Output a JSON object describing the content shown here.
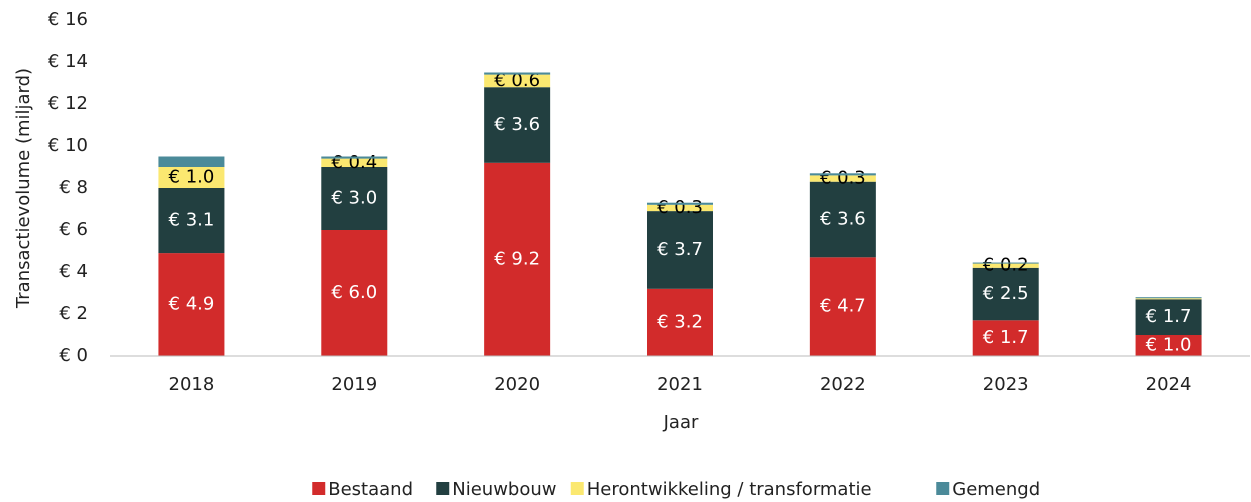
{
  "chart_data": {
    "type": "stacked-bar",
    "y_label": "Transactievolume (miljard)",
    "x_label": "Jaar",
    "categories": [
      "2018",
      "2019",
      "2020",
      "2021",
      "2022",
      "2023",
      "2024"
    ],
    "series": [
      {
        "name": "Bestaand",
        "color": "#d22b2b",
        "values": [
          4.9,
          6.0,
          9.2,
          3.2,
          4.7,
          1.7,
          1.0
        ],
        "value_labels": [
          "€ 4.9",
          "€ 6.0",
          "€ 9.2",
          "€ 3.2",
          "€ 4.7",
          "€ 1.7",
          "€ 1.0"
        ],
        "label_color": "#ffffff"
      },
      {
        "name": "Nieuwbouw",
        "color": "#223f40",
        "values": [
          3.1,
          3.0,
          3.6,
          3.7,
          3.6,
          2.5,
          1.7
        ],
        "value_labels": [
          "€ 3.1",
          "€ 3.0",
          "€ 3.6",
          "€ 3.7",
          "€ 3.6",
          "€ 2.5",
          "€ 1.7"
        ],
        "label_color": "#ffffff"
      },
      {
        "name": "Herontwikkeling / transformatie",
        "color": "#fbe870",
        "values": [
          1.0,
          0.4,
          0.6,
          0.3,
          0.3,
          0.2,
          0.05
        ],
        "value_labels": [
          "€ 1.0",
          "€ 0.4",
          "€ 0.6",
          "€ 0.3",
          "€ 0.3",
          "€ 0.2",
          null
        ],
        "label_color": "#000000"
      },
      {
        "name": "Gemengd",
        "color": "#4b8a99",
        "values": [
          0.5,
          0.1,
          0.1,
          0.1,
          0.1,
          0.05,
          0.05
        ]
      }
    ],
    "ylim": [
      0,
      16
    ],
    "yticks": [
      {
        "value": 0,
        "label": "€ 0"
      },
      {
        "value": 2,
        "label": "€ 2"
      },
      {
        "value": 4,
        "label": "€ 4"
      },
      {
        "value": 6,
        "label": "€ 6"
      },
      {
        "value": 8,
        "label": "€ 8"
      },
      {
        "value": 10,
        "label": "€ 10"
      },
      {
        "value": 12,
        "label": "€ 12"
      },
      {
        "value": 14,
        "label": "€ 14"
      },
      {
        "value": 16,
        "label": "€ 16"
      }
    ],
    "legend": "bottom"
  }
}
